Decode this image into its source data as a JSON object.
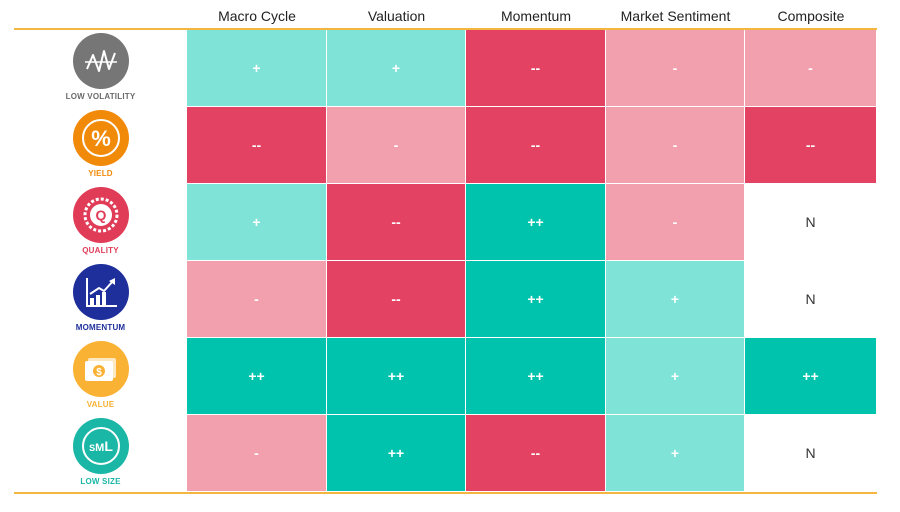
{
  "chart_data": {
    "type": "table",
    "columns": [
      "Macro Cycle",
      "Valuation",
      "Momentum",
      "Market Sentiment",
      "Composite"
    ],
    "rows": [
      {
        "factor": "LOW VOLATILITY",
        "icon": "low-volatility-icon",
        "color": "#767676",
        "values": [
          "+",
          "+",
          "--",
          "-",
          "-"
        ]
      },
      {
        "factor": "YIELD",
        "icon": "percent-icon",
        "color": "#f18a09",
        "values": [
          "--",
          "-",
          "--",
          "-",
          "--"
        ]
      },
      {
        "factor": "QUALITY",
        "icon": "quality-seal-icon",
        "color": "#e03c58",
        "values": [
          "+",
          "--",
          "++",
          "-",
          "N"
        ]
      },
      {
        "factor": "MOMENTUM",
        "icon": "rising-chart-icon",
        "color": "#1e2f9c",
        "values": [
          "-",
          "--",
          "++",
          "+",
          "N"
        ]
      },
      {
        "factor": "VALUE",
        "icon": "dollar-bills-icon",
        "color": "#f9b233",
        "values": [
          "++",
          "++",
          "++",
          "+",
          "++"
        ]
      },
      {
        "factor": "LOW SIZE",
        "icon": "sml-icon",
        "color": "#1ab6a6",
        "values": [
          "-",
          "++",
          "--",
          "+",
          "N"
        ]
      }
    ],
    "legend_colors": {
      "++": "#00c3ad",
      "+": "#80e3d8",
      "N": "#ffffff",
      "-": "#f2a0ad",
      "--": "#e34262"
    },
    "rule_color": "#f4b63f"
  }
}
